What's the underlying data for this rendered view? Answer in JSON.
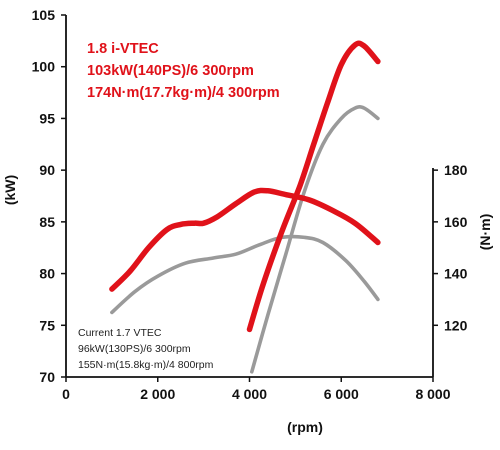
{
  "chart_data": {
    "type": "line",
    "xlabel": "(rpm)",
    "ylabel_left": "(kW)",
    "ylabel_right": "(N·m)",
    "xlim": [
      0,
      8000
    ],
    "ylim_left": [
      70,
      105
    ],
    "ylim_right": [
      100,
      240
    ],
    "x_ticks": [
      "0",
      "2 000",
      "4 000",
      "6 000",
      "8 000"
    ],
    "x_tick_values": [
      0,
      2000,
      4000,
      6000,
      8000
    ],
    "y_left_ticks": [
      "70",
      "75",
      "80",
      "85",
      "90",
      "95",
      "100",
      "105"
    ],
    "y_left_tick_values": [
      70,
      75,
      80,
      85,
      90,
      95,
      100,
      105
    ],
    "y_right_ticks": [
      "120",
      "140",
      "160",
      "180"
    ],
    "y_right_tick_values": [
      120,
      140,
      160,
      180
    ],
    "grid": false,
    "colors": {
      "new": "#e0121a",
      "current": "#9a9a9a",
      "axis": "#111111"
    },
    "series": [
      {
        "key": "new_power",
        "axis": "left",
        "color": "#e0121a",
        "points": [
          [
            4000,
            74.6
          ],
          [
            4300,
            79
          ],
          [
            4700,
            84
          ],
          [
            5100,
            88.5
          ],
          [
            5400,
            92.5
          ],
          [
            5700,
            96.5
          ],
          [
            6000,
            100.2
          ],
          [
            6300,
            102.1
          ],
          [
            6500,
            102
          ],
          [
            6800,
            100.5
          ]
        ]
      },
      {
        "key": "new_torque",
        "axis": "right",
        "color": "#e0121a",
        "points": [
          [
            1000,
            134
          ],
          [
            1400,
            141
          ],
          [
            1800,
            150
          ],
          [
            2200,
            157
          ],
          [
            2500,
            159
          ],
          [
            2800,
            159.5
          ],
          [
            3000,
            159.5
          ],
          [
            3300,
            162
          ],
          [
            3700,
            167
          ],
          [
            4100,
            171.5
          ],
          [
            4400,
            172
          ],
          [
            4800,
            170.5
          ],
          [
            5300,
            168.5
          ],
          [
            5800,
            164.5
          ],
          [
            6300,
            159.5
          ],
          [
            6800,
            152
          ]
        ]
      },
      {
        "key": "current_power",
        "axis": "left",
        "color": "#9a9a9a",
        "points": [
          [
            4050,
            70.5
          ],
          [
            4400,
            76
          ],
          [
            4800,
            82
          ],
          [
            5200,
            88
          ],
          [
            5600,
            92.5
          ],
          [
            6000,
            95
          ],
          [
            6300,
            96
          ],
          [
            6500,
            96
          ],
          [
            6800,
            95
          ]
        ]
      },
      {
        "key": "current_torque",
        "axis": "right",
        "color": "#9a9a9a",
        "points": [
          [
            1000,
            125
          ],
          [
            1500,
            133
          ],
          [
            2000,
            139
          ],
          [
            2600,
            144
          ],
          [
            3200,
            146
          ],
          [
            3700,
            147.5
          ],
          [
            4200,
            151
          ],
          [
            4700,
            154
          ],
          [
            5200,
            154
          ],
          [
            5600,
            152
          ],
          [
            6100,
            145
          ],
          [
            6500,
            137
          ],
          [
            6800,
            130
          ]
        ]
      }
    ],
    "annotations": {
      "new_engine": [
        "1.8 i-VTEC",
        "103kW(140PS)/6 300rpm",
        "174N·m(17.7kg·m)/4 300rpm"
      ],
      "current_engine": [
        "Current  1.7 VTEC",
        "96kW(130PS)/6 300rpm",
        "155N·m(15.8kg·m)/4 800rpm"
      ]
    }
  }
}
